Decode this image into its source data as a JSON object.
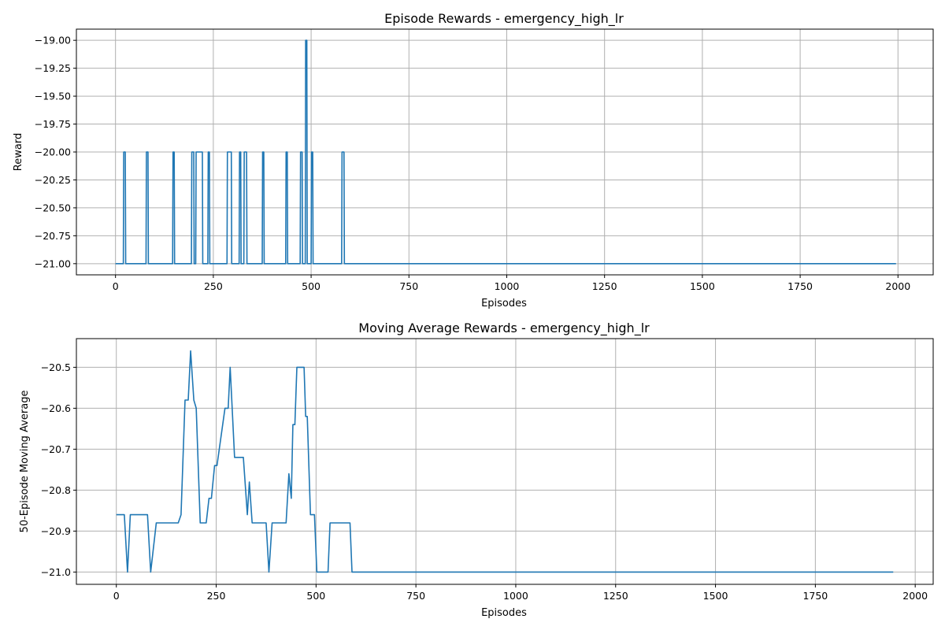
{
  "chart_data": [
    {
      "type": "line",
      "title": "Episode Rewards - emergency_high_lr",
      "xlabel": "Episodes",
      "ylabel": "Reward",
      "xlim": [
        -100,
        2090
      ],
      "ylim": [
        -21.1,
        -18.9
      ],
      "xticks": [
        0,
        250,
        500,
        750,
        1000,
        1250,
        1500,
        1750,
        2000
      ],
      "xtick_labels": [
        "0",
        "250",
        "500",
        "750",
        "1000",
        "1250",
        "1500",
        "1750",
        "2000"
      ],
      "yticks": [
        -21.0,
        -20.75,
        -20.5,
        -20.25,
        -20.0,
        -19.75,
        -19.5,
        -19.25,
        -19.0
      ],
      "ytick_labels": [
        "−21.00",
        "−20.75",
        "−20.50",
        "−20.25",
        "−20.00",
        "−19.75",
        "−19.50",
        "−19.25",
        "−19.00"
      ],
      "grid": true,
      "color": "#1f77b4",
      "series": [
        {
          "x": [
            0,
            20,
            21,
            25,
            26,
            78,
            79,
            83,
            84,
            146,
            147,
            150,
            151,
            194,
            195,
            200,
            201,
            205,
            206,
            210,
            211,
            222,
            223,
            236,
            237,
            240,
            241,
            285,
            286,
            296,
            297,
            300,
            301,
            316,
            317,
            320,
            321,
            328,
            329,
            335,
            336,
            375,
            376,
            379,
            380,
            435,
            436,
            439,
            440,
            472,
            473,
            477,
            478,
            485,
            486,
            489,
            490,
            491,
            492,
            500,
            501,
            504,
            505,
            578,
            579,
            584,
            585,
            1995
          ],
          "y": [
            -21,
            -21,
            -20,
            -20,
            -21,
            -21,
            -20,
            -20,
            -21,
            -21,
            -20,
            -20,
            -21,
            -21,
            -20,
            -20,
            -21,
            -21,
            -20,
            -20,
            -20,
            -20,
            -21,
            -21,
            -20,
            -20,
            -21,
            -21,
            -20,
            -20,
            -21,
            -21,
            -21,
            -21,
            -20,
            -20,
            -21,
            -21,
            -20,
            -20,
            -21,
            -21,
            -20,
            -20,
            -21,
            -21,
            -20,
            -20,
            -21,
            -21,
            -20,
            -20,
            -21,
            -21,
            -19,
            -19,
            -21,
            -21,
            -21,
            -21,
            -20,
            -20,
            -21,
            -21,
            -20,
            -20,
            -21,
            -21
          ]
        }
      ]
    },
    {
      "type": "line",
      "title": "Moving Average Rewards - emergency_high_lr",
      "xlabel": "Episodes",
      "ylabel": "50-Episode Moving Average",
      "xlim": [
        -100,
        2045
      ],
      "ylim": [
        -21.03,
        -20.43
      ],
      "xticks": [
        0,
        250,
        500,
        750,
        1000,
        1250,
        1500,
        1750,
        2000
      ],
      "xtick_labels": [
        "0",
        "250",
        "500",
        "750",
        "1000",
        "1250",
        "1500",
        "1750",
        "2000"
      ],
      "yticks": [
        -21.0,
        -20.9,
        -20.8,
        -20.7,
        -20.6,
        -20.5
      ],
      "ytick_labels": [
        "−21.0",
        "−20.9",
        "−20.8",
        "−20.7",
        "−20.6",
        "−20.5"
      ],
      "grid": true,
      "color": "#1f77b4",
      "series": [
        {
          "x": [
            0,
            20,
            28,
            35,
            78,
            86,
            100,
            155,
            162,
            172,
            180,
            186,
            194,
            200,
            210,
            225,
            232,
            238,
            246,
            252,
            272,
            280,
            285,
            290,
            296,
            300,
            318,
            328,
            333,
            340,
            375,
            382,
            390,
            425,
            432,
            438,
            442,
            447,
            452,
            458,
            470,
            474,
            478,
            486,
            496,
            502,
            506,
            530,
            535,
            585,
            590,
            1945
          ],
          "y": [
            -20.86,
            -20.86,
            -21.0,
            -20.86,
            -20.86,
            -21.0,
            -20.88,
            -20.88,
            -20.86,
            -20.58,
            -20.58,
            -20.46,
            -20.58,
            -20.6,
            -20.88,
            -20.88,
            -20.82,
            -20.82,
            -20.74,
            -20.74,
            -20.6,
            -20.6,
            -20.5,
            -20.6,
            -20.72,
            -20.72,
            -20.72,
            -20.86,
            -20.78,
            -20.88,
            -20.88,
            -21.0,
            -20.88,
            -20.88,
            -20.76,
            -20.82,
            -20.64,
            -20.64,
            -20.5,
            -20.5,
            -20.5,
            -20.62,
            -20.62,
            -20.86,
            -20.86,
            -21.0,
            -21.0,
            -21.0,
            -20.88,
            -20.88,
            -21.0,
            -21.0
          ]
        }
      ]
    }
  ]
}
